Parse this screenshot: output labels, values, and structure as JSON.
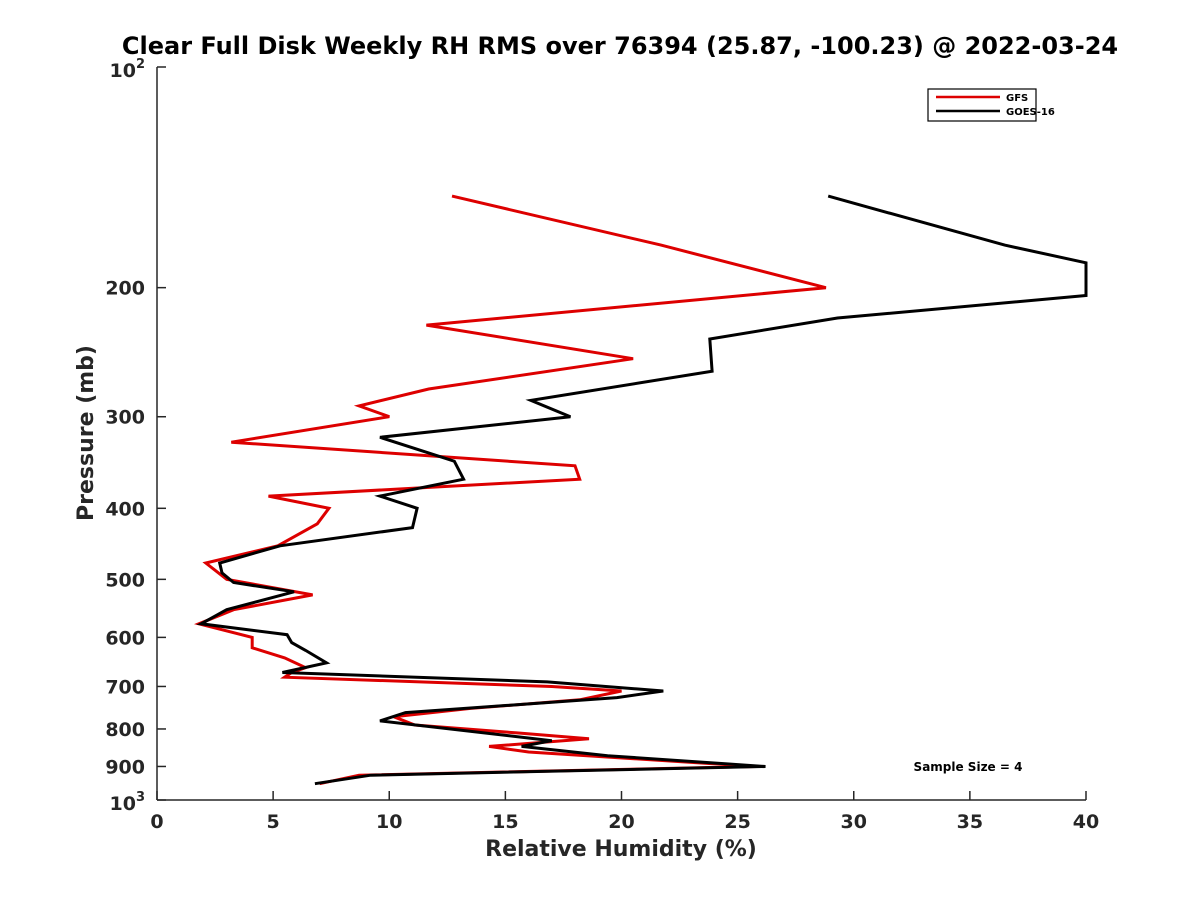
{
  "chart_data": {
    "type": "line",
    "title": "Clear Full Disk Weekly RH RMS over 76394 (25.87, -100.23) @ 2022-03-24",
    "xlabel": "Relative Humidity (%)",
    "ylabel": "Pressure (mb)",
    "xlim": [
      0,
      40
    ],
    "ylim": [
      100,
      1000
    ],
    "y_scale": "log",
    "y_reversed": false,
    "x_ticks": [
      0,
      5,
      10,
      15,
      20,
      25,
      30,
      35,
      40
    ],
    "x_tick_labels": [
      "0",
      "5",
      "10",
      "15",
      "20",
      "25",
      "30",
      "35",
      "40"
    ],
    "y_ticks": [
      200,
      300,
      400,
      500,
      600,
      700,
      800,
      900
    ],
    "y_tick_labels": [
      "200",
      "300",
      "400",
      "500",
      "600",
      "700",
      "800",
      "900"
    ],
    "y_end_labels": {
      "top": {
        "base": "10",
        "exp": "2"
      },
      "bottom": {
        "base": "10",
        "exp": "3"
      }
    },
    "legend_position": "top-right",
    "annotation": "Sample Size = 4",
    "series": [
      {
        "name": "GFS",
        "color": "#dd0000",
        "points": [
          [
            12.7,
            150
          ],
          [
            21.7,
            175
          ],
          [
            28.8,
            200
          ],
          [
            11.6,
            225
          ],
          [
            20.5,
            250
          ],
          [
            11.7,
            275
          ],
          [
            8.7,
            290
          ],
          [
            10.0,
            300
          ],
          [
            3.2,
            325
          ],
          [
            18.0,
            350
          ],
          [
            18.2,
            365
          ],
          [
            4.8,
            385
          ],
          [
            7.4,
            400
          ],
          [
            6.9,
            420
          ],
          [
            5.2,
            450
          ],
          [
            2.1,
            475
          ],
          [
            3.0,
            500
          ],
          [
            6.7,
            525
          ],
          [
            3.3,
            550
          ],
          [
            1.8,
            575
          ],
          [
            4.1,
            600
          ],
          [
            4.1,
            620
          ],
          [
            5.5,
            640
          ],
          [
            6.4,
            660
          ],
          [
            5.8,
            670
          ],
          [
            5.5,
            680
          ],
          [
            17.0,
            700
          ],
          [
            20.0,
            710
          ],
          [
            18.2,
            730
          ],
          [
            13.5,
            750
          ],
          [
            10.2,
            770
          ],
          [
            11.1,
            790
          ],
          [
            15.5,
            810
          ],
          [
            18.6,
            825
          ],
          [
            14.3,
            845
          ],
          [
            16.0,
            860
          ],
          [
            25.8,
            900
          ],
          [
            8.7,
            925
          ],
          [
            7.0,
            950
          ]
        ]
      },
      {
        "name": "GOES-16",
        "color": "#000000",
        "points": [
          [
            28.9,
            150
          ],
          [
            36.5,
            175
          ],
          [
            40.0,
            185
          ],
          [
            40.0,
            205
          ],
          [
            29.3,
            220
          ],
          [
            23.8,
            235
          ],
          [
            23.9,
            260
          ],
          [
            16.1,
            285
          ],
          [
            17.8,
            300
          ],
          [
            9.6,
            320
          ],
          [
            12.8,
            345
          ],
          [
            13.2,
            365
          ],
          [
            9.6,
            385
          ],
          [
            11.2,
            400
          ],
          [
            11.0,
            425
          ],
          [
            5.3,
            450
          ],
          [
            2.7,
            475
          ],
          [
            2.8,
            490
          ],
          [
            3.3,
            505
          ],
          [
            5.9,
            520
          ],
          [
            3.0,
            550
          ],
          [
            1.9,
            575
          ],
          [
            5.6,
            595
          ],
          [
            5.8,
            610
          ],
          [
            6.4,
            625
          ],
          [
            7.3,
            650
          ],
          [
            5.4,
            670
          ],
          [
            16.8,
            690
          ],
          [
            21.8,
            710
          ],
          [
            19.8,
            725
          ],
          [
            10.7,
            760
          ],
          [
            9.6,
            780
          ],
          [
            17.0,
            830
          ],
          [
            15.7,
            845
          ],
          [
            19.4,
            870
          ],
          [
            26.2,
            900
          ],
          [
            9.2,
            925
          ],
          [
            6.8,
            950
          ]
        ]
      }
    ]
  }
}
